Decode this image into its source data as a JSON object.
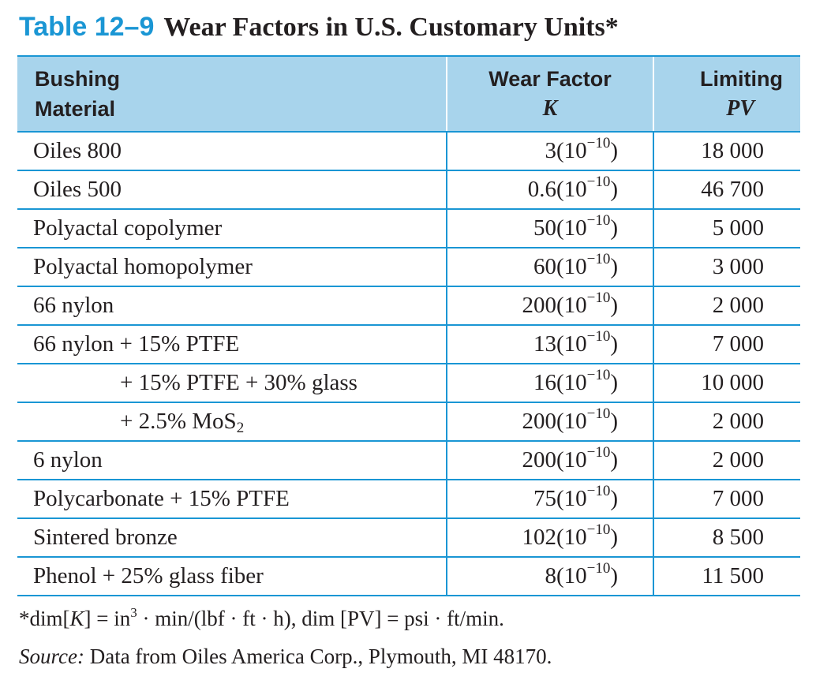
{
  "table": {
    "label": "Table 12–9",
    "title": "Wear Factors in U.S. Customary Units*",
    "columns": {
      "material_line1": "Bushing",
      "material_line2": "Material",
      "wear_line1": "Wear Factor",
      "wear_symbol": "K",
      "pv_line1": "Limiting",
      "pv_symbol": "PV"
    },
    "power_base": "(10",
    "power_exp": "−10",
    "power_close": ")",
    "rows": [
      {
        "material": "Oiles 800",
        "coef": "3",
        "pv": "18 000"
      },
      {
        "material": "Oiles 500",
        "coef": "0.6",
        "pv": "46 700"
      },
      {
        "material": "Polyactal copolymer",
        "coef": "50",
        "pv": "5 000"
      },
      {
        "material": "Polyactal homopolymer",
        "coef": "60",
        "pv": "3 000"
      },
      {
        "material": "66 nylon",
        "coef": "200",
        "pv": "2 000"
      },
      {
        "material": "66 nylon + 15% PTFE",
        "coef": "13",
        "pv": "7 000"
      },
      {
        "material": "+ 15% PTFE + 30% glass",
        "coef": "16",
        "pv": "10 000"
      },
      {
        "material": "+ 2.5% MoS",
        "material_sub": "2",
        "coef": "200",
        "pv": "2 000"
      },
      {
        "material": "6 nylon",
        "coef": "200",
        "pv": "2 000"
      },
      {
        "material": "Polycarbonate + 15% PTFE",
        "coef": "75",
        "pv": "7 000"
      },
      {
        "material": "Sintered bronze",
        "coef": "102",
        "pv": "8 500"
      },
      {
        "material": "Phenol + 25% glass fiber",
        "coef": "8",
        "pv": "11 500"
      }
    ],
    "footnote": {
      "lead": "*dim[",
      "k": "K",
      "mid": "] = in",
      "exp": "3",
      "rest": " · min/(lbf · ft · h), dim [PV] = psi · ft/min."
    },
    "source": {
      "label": "Source:",
      "text": " Data from Oiles America Corp., Plymouth, MI 48170."
    }
  }
}
